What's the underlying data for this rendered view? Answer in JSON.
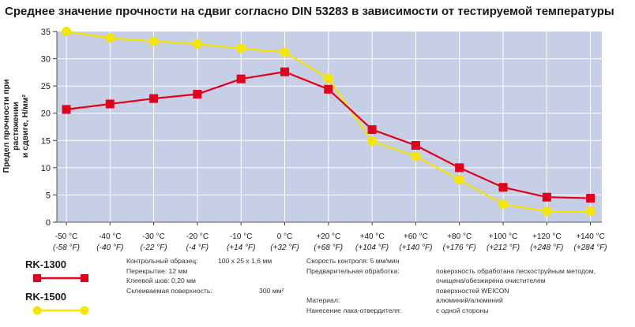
{
  "title": "Среднее значение прочности на сдвиг согласно DIN 53283 в зависимости от тестируемой температуры",
  "colors": {
    "plot_bg": "#c7cfe6",
    "grid": "#ffffff",
    "rk1300": "#e2001a",
    "rk1500": "#f5e600"
  },
  "chart_data": {
    "type": "line",
    "title": "Среднее значение прочности на сдвиг согласно DIN 53283 в зависимости от тестируемой температуры",
    "ylabel_line1": "Предел прочности при растяжении",
    "ylabel_line2": "и сдвиге, Н/мм²",
    "ylim": [
      0,
      35
    ],
    "yticks": [
      "0",
      "5",
      "10",
      "15",
      "20",
      "25",
      "30",
      "35"
    ],
    "grid": true,
    "categories": [
      "-50 °C",
      "-40 °C",
      "-30 °C",
      "-20 °C",
      "-10 °C",
      "0 °C",
      "+20 °C",
      "+40 °C",
      "+60 °C",
      "+80 °C",
      "+100 °C",
      "+120 °C",
      "+140 °C"
    ],
    "categories_f": [
      "(-58 °F)",
      "(-40 °F)",
      "(-22 °F)",
      "(-4 °F)",
      "(+14 °F)",
      "(+32 °F)",
      "(+68 °F)",
      "(+104 °F)",
      "(+140 °F)",
      "(+176 °F)",
      "(+212 °F)",
      "(+248 °F)",
      "(+284 °F)"
    ],
    "series": [
      {
        "name": "RK-1300",
        "values": [
          20.7,
          21.7,
          22.7,
          23.5,
          26.3,
          27.6,
          24.4,
          17.0,
          14.1,
          10.0,
          6.4,
          4.6,
          4.4
        ]
      },
      {
        "name": "RK-1500",
        "values": [
          35.0,
          33.8,
          33.2,
          32.7,
          31.9,
          31.2,
          26.4,
          14.9,
          12.1,
          7.8,
          3.3,
          2.0,
          2.0
        ]
      }
    ]
  },
  "legend": {
    "rk1300": "RK-1300",
    "rk1500": "RK-1500"
  },
  "notes": {
    "col1": [
      "Контрольный образец:",
      "Перекрытие: 12 мм",
      "Клеевой шов: 0,20 мм",
      "Склеиваемая поверхность:"
    ],
    "sample_size": "100 x 25 x 1,6 мм",
    "area": "300 мм²",
    "col3": [
      "Скорость контроля:  5 мм/мин",
      "Предварительная обработка:",
      "",
      "",
      "Материал:",
      "Нанесение лака-отвердителя:"
    ],
    "col4": [
      "",
      "поверхность обработана пескоструйным методом,",
      "очищена/обезжирена очистителем",
      "поверхностей WEICON",
      "алюминий/алюминий",
      "с одной стороны"
    ]
  }
}
